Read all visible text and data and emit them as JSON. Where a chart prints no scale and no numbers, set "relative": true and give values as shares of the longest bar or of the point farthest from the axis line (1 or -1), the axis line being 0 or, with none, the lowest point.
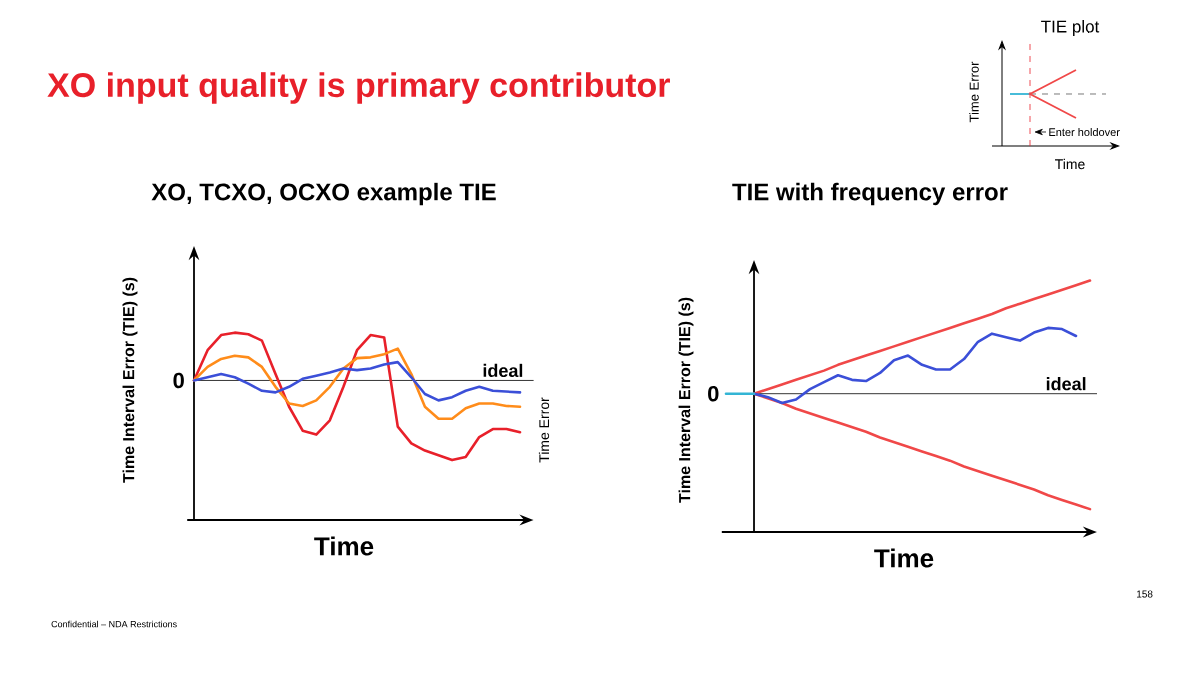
{
  "chart_data": [
    {
      "type": "line",
      "title": "XO, TCXO, OCXO example TIE",
      "xlabel": "Time",
      "ylabel": "Time Interval Error (TIE) (s)",
      "y2label": "Time Error",
      "relative": true,
      "categories": [
        null,
        null,
        null,
        null,
        null,
        null,
        null,
        null,
        null,
        null,
        null,
        null,
        null,
        null,
        null,
        null,
        null,
        null,
        null,
        null,
        null,
        null,
        null,
        null,
        null
      ],
      "series": [
        {
          "color": "#e8202a",
          "values": [
            0,
            0.38,
            0.57,
            0.6,
            0.58,
            0.5,
            0.08,
            -0.33,
            -0.63,
            -0.68,
            -0.5,
            -0.08,
            0.38,
            0.57,
            0.54,
            -0.58,
            -0.79,
            -0.88,
            -0.94,
            -1.0,
            -0.96,
            -0.71,
            -0.61,
            -0.61,
            -0.65
          ]
        },
        {
          "color": "#ff8c1a",
          "values": [
            0,
            0.17,
            0.27,
            0.31,
            0.29,
            0.17,
            -0.08,
            -0.29,
            -0.32,
            -0.25,
            -0.08,
            0.15,
            0.28,
            0.29,
            0.33,
            0.4,
            0.08,
            -0.33,
            -0.48,
            -0.48,
            -0.35,
            -0.29,
            -0.29,
            -0.32,
            -0.33
          ]
        },
        {
          "color": "#3b4fd8",
          "values": [
            0,
            0.04,
            0.08,
            0.04,
            -0.04,
            -0.13,
            -0.15,
            -0.08,
            0.02,
            0.06,
            0.1,
            0.15,
            0.13,
            0.15,
            0.2,
            0.23,
            0.04,
            -0.17,
            -0.25,
            -0.21,
            -0.13,
            -0.08,
            -0.13,
            -0.14,
            -0.15
          ]
        }
      ],
      "ref_lines": [
        {
          "axis": "y",
          "value": 0,
          "label": "ideal",
          "color": "#000000",
          "line_style": "solid"
        }
      ],
      "annotations": [
        "0"
      ]
    },
    {
      "type": "line",
      "title": "TIE with frequency error",
      "xlabel": "Time",
      "ylabel": "Time Interval Error (TIE) (s)",
      "relative": true,
      "categories": [
        null,
        null,
        null,
        null,
        null,
        null,
        null,
        null,
        null,
        null,
        null,
        null,
        null,
        null,
        null,
        null,
        null,
        null,
        null,
        null,
        null,
        null,
        null,
        null,
        null,
        null,
        null
      ],
      "series": [
        {
          "color": "#f04848",
          "values": [
            null,
            null,
            0,
            0.04,
            0.08,
            0.12,
            0.16,
            0.2,
            0.25,
            0.29,
            0.33,
            0.37,
            0.41,
            0.45,
            0.49,
            0.53,
            0.57,
            0.61,
            0.65,
            0.69,
            0.74,
            0.78,
            0.82,
            0.86,
            0.9,
            0.94,
            0.98
          ]
        },
        {
          "color": "#f04848",
          "values": [
            null,
            null,
            0,
            -0.04,
            -0.08,
            -0.13,
            -0.17,
            -0.21,
            -0.25,
            -0.29,
            -0.33,
            -0.38,
            -0.42,
            -0.46,
            -0.5,
            -0.54,
            -0.58,
            -0.63,
            -0.67,
            -0.71,
            -0.75,
            -0.79,
            -0.83,
            -0.88,
            -0.92,
            -0.96,
            -1.0
          ]
        },
        {
          "color": "#3b4fd8",
          "values": [
            null,
            null,
            0,
            -0.03,
            -0.08,
            -0.05,
            0.04,
            0.1,
            0.16,
            0.12,
            0.11,
            0.18,
            0.29,
            0.33,
            0.25,
            0.21,
            0.21,
            0.3,
            0.45,
            0.52,
            0.49,
            0.46,
            0.53,
            0.57,
            0.56,
            0.5,
            null
          ]
        },
        {
          "color": "#33b5d5",
          "values": [
            0,
            0,
            0,
            null,
            null,
            null,
            null,
            null,
            null,
            null,
            null,
            null,
            null,
            null,
            null,
            null,
            null,
            null,
            null,
            null,
            null,
            null,
            null,
            null,
            null,
            null,
            null
          ]
        }
      ],
      "ref_lines": [
        {
          "axis": "y",
          "value": 0,
          "label": "ideal",
          "color": "#000000",
          "line_style": "solid"
        }
      ],
      "annotations": [
        "0"
      ]
    },
    {
      "type": "other",
      "title": "TIE plot",
      "xlabel": "Time",
      "ylabel": "Time Error",
      "annotations": [
        "Enter holdover"
      ]
    },
    {
      "type": "other",
      "title": "XO input quality is primary contributor",
      "annotations": [
        "Confidential – NDA Restrictions",
        "158"
      ]
    }
  ]
}
